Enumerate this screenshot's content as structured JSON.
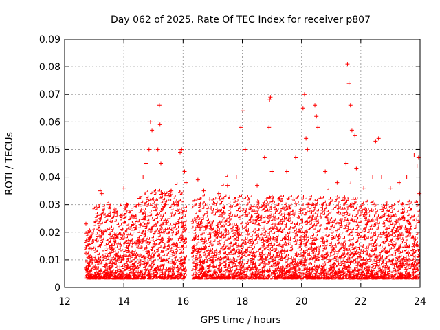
{
  "chart_data": {
    "type": "scatter",
    "title": "Day 062 of 2025, Rate Of TEC Index for receiver p807",
    "xlabel": "GPS time / hours",
    "ylabel": "ROTI / TECUs",
    "xlim": [
      12,
      24
    ],
    "ylim": [
      0,
      0.09
    ],
    "xticks": [
      "12",
      "14",
      "16",
      "18",
      "20",
      "22",
      "24"
    ],
    "yticks": [
      "0",
      "0.01",
      "0.02",
      "0.03",
      "0.04",
      "0.05",
      "0.06",
      "0.07",
      "0.08",
      "0.09"
    ],
    "grid": true,
    "marker": "plus",
    "series": [
      {
        "name": "ROTI",
        "color": "#ff0000",
        "points": [
          [
            12.72,
            0.023
          ],
          [
            12.75,
            0.012
          ],
          [
            12.8,
            0.008
          ],
          [
            12.85,
            0.018
          ],
          [
            12.9,
            0.014
          ],
          [
            13.05,
            0.024
          ],
          [
            13.2,
            0.035
          ],
          [
            13.25,
            0.034
          ],
          [
            13.3,
            0.02
          ],
          [
            13.5,
            0.03
          ],
          [
            13.7,
            0.027
          ],
          [
            13.9,
            0.026
          ],
          [
            14.0,
            0.036
          ],
          [
            14.1,
            0.03
          ],
          [
            14.3,
            0.026
          ],
          [
            14.5,
            0.03
          ],
          [
            14.65,
            0.04
          ],
          [
            14.75,
            0.045
          ],
          [
            14.85,
            0.05
          ],
          [
            14.9,
            0.06
          ],
          [
            14.95,
            0.057
          ],
          [
            15.0,
            0.032
          ],
          [
            15.15,
            0.05
          ],
          [
            15.2,
            0.066
          ],
          [
            15.22,
            0.059
          ],
          [
            15.25,
            0.045
          ],
          [
            15.4,
            0.03
          ],
          [
            15.6,
            0.035
          ],
          [
            15.8,
            0.03
          ],
          [
            15.9,
            0.049
          ],
          [
            15.95,
            0.05
          ],
          [
            16.05,
            0.042
          ],
          [
            16.1,
            0.038
          ],
          [
            16.5,
            0.039
          ],
          [
            16.7,
            0.035
          ],
          [
            16.9,
            0.032
          ],
          [
            17.2,
            0.034
          ],
          [
            17.5,
            0.037
          ],
          [
            17.8,
            0.04
          ],
          [
            17.95,
            0.058
          ],
          [
            18.02,
            0.064
          ],
          [
            18.1,
            0.05
          ],
          [
            18.5,
            0.037
          ],
          [
            18.75,
            0.047
          ],
          [
            18.9,
            0.058
          ],
          [
            18.92,
            0.068
          ],
          [
            18.95,
            0.069
          ],
          [
            19.0,
            0.042
          ],
          [
            19.5,
            0.042
          ],
          [
            19.8,
            0.047
          ],
          [
            20.05,
            0.065
          ],
          [
            20.1,
            0.07
          ],
          [
            20.15,
            0.054
          ],
          [
            20.2,
            0.05
          ],
          [
            20.45,
            0.066
          ],
          [
            20.5,
            0.062
          ],
          [
            20.55,
            0.058
          ],
          [
            20.8,
            0.042
          ],
          [
            21.2,
            0.038
          ],
          [
            21.5,
            0.045
          ],
          [
            21.55,
            0.081
          ],
          [
            21.6,
            0.074
          ],
          [
            21.65,
            0.066
          ],
          [
            21.7,
            0.057
          ],
          [
            21.8,
            0.055
          ],
          [
            21.85,
            0.043
          ],
          [
            22.1,
            0.036
          ],
          [
            22.4,
            0.04
          ],
          [
            22.5,
            0.053
          ],
          [
            22.6,
            0.054
          ],
          [
            22.7,
            0.04
          ],
          [
            23.0,
            0.036
          ],
          [
            23.3,
            0.038
          ],
          [
            23.55,
            0.04
          ],
          [
            23.8,
            0.048
          ],
          [
            23.9,
            0.044
          ],
          [
            23.95,
            0.047
          ],
          [
            23.98,
            0.034
          ]
        ]
      }
    ]
  }
}
